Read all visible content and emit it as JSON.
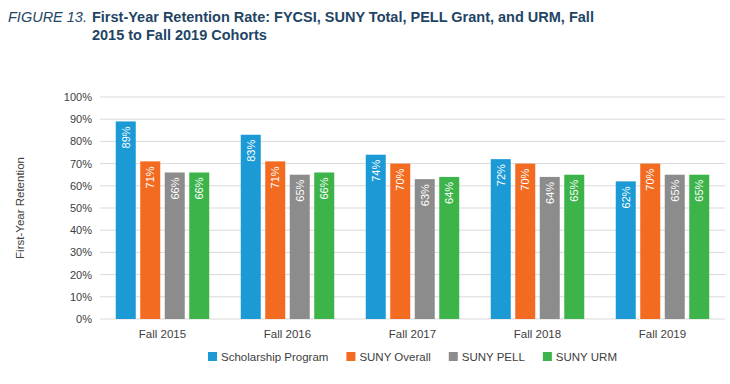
{
  "chart_data": {
    "type": "bar",
    "title": "FIGURE 13. First-Year Retention Rate: FYCSI, SUNY Total, PELL Grant, and URM, Fall 2015 to Fall 2019 Cohorts",
    "y_label": "First-Year Retention",
    "categories": [
      "Fall 2015",
      "Fall 2016",
      "Fall 2017",
      "Fall 2018",
      "Fall 2019"
    ],
    "series": [
      {
        "name": "Scholarship Program",
        "color": "#1b9ad6",
        "values": [
          89,
          83,
          74,
          72,
          62
        ],
        "value_labels": [
          "89%",
          "83%",
          "74%",
          "72%",
          "62%"
        ]
      },
      {
        "name": "SUNY Overall",
        "color": "#f26b21",
        "values": [
          71,
          71,
          70,
          70,
          70
        ],
        "value_labels": [
          "71%",
          "71%",
          "70%",
          "70%",
          "70%"
        ]
      },
      {
        "name": "SUNY PELL",
        "color": "#8c8c8c",
        "values": [
          66,
          65,
          63,
          64,
          65
        ],
        "value_labels": [
          "66%",
          "65%",
          "63%",
          "64%",
          "65%"
        ]
      },
      {
        "name": "SUNY URM",
        "color": "#3cb44a",
        "values": [
          66,
          66,
          64,
          65,
          65
        ],
        "value_labels": [
          "66%",
          "66%",
          "64%",
          "65%",
          "65%"
        ]
      }
    ],
    "ylim": [
      0,
      100
    ],
    "yticks": [
      {
        "value": 0,
        "label": "0%"
      },
      {
        "value": 10,
        "label": "10%"
      },
      {
        "value": 20,
        "label": "20%"
      },
      {
        "value": 30,
        "label": "30%"
      },
      {
        "value": 40,
        "label": "40%"
      },
      {
        "value": 50,
        "label": "50%"
      },
      {
        "value": 60,
        "label": "60%"
      },
      {
        "value": 70,
        "label": "70%"
      },
      {
        "value": 80,
        "label": "80%"
      },
      {
        "value": 90,
        "label": "90%"
      },
      {
        "value": 100,
        "label": "100%"
      }
    ],
    "grid": true,
    "data_labels": true,
    "legend": "bottom"
  }
}
